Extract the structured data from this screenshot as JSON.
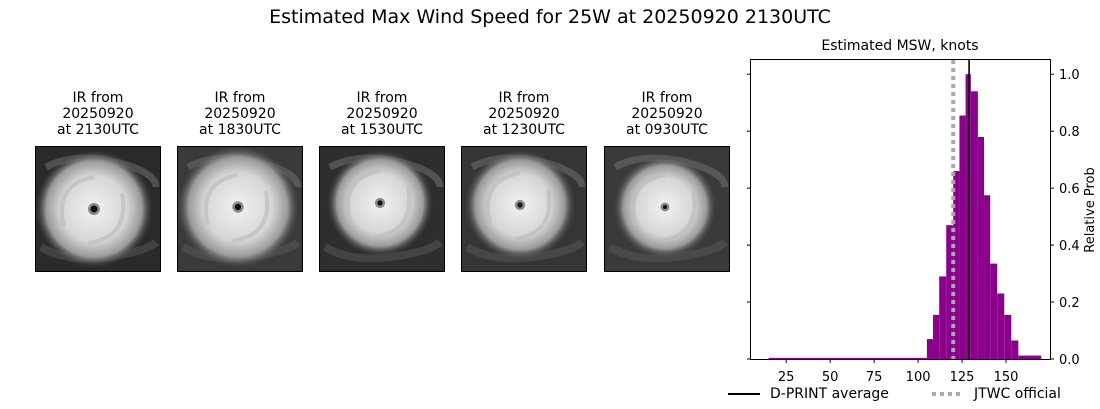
{
  "title": "Estimated Max Wind Speed for 25W at 20250920 2130UTC",
  "ir_panels": [
    {
      "line1": "IR from",
      "line2": "20250920",
      "line3": "at 2130UTC",
      "icon": "ir-satellite-image"
    },
    {
      "line1": "IR from",
      "line2": "20250920",
      "line3": "at 1830UTC",
      "icon": "ir-satellite-image"
    },
    {
      "line1": "IR from",
      "line2": "20250920",
      "line3": "at 1530UTC",
      "icon": "ir-satellite-image"
    },
    {
      "line1": "IR from",
      "line2": "20250920",
      "line3": "at 1230UTC",
      "icon": "ir-satellite-image"
    },
    {
      "line1": "IR from",
      "line2": "20250920",
      "line3": "at 0930UTC",
      "icon": "ir-satellite-image"
    }
  ],
  "chart_data": {
    "type": "bar",
    "title": "Estimated MSW, knots",
    "xlabel": "",
    "ylabel": "Relative Prob",
    "xlim": [
      5,
      175
    ],
    "ylim": [
      0,
      1.05
    ],
    "xticks": [
      25,
      50,
      75,
      100,
      125,
      150
    ],
    "yticks": [
      0.0,
      0.2,
      0.4,
      0.6,
      0.8,
      1.0
    ],
    "bar_color": "#8b008b",
    "bins": [
      {
        "x0": 15,
        "x1": 105,
        "value": 0.004
      },
      {
        "x0": 105,
        "x1": 108.5,
        "value": 0.07
      },
      {
        "x0": 108.5,
        "x1": 112,
        "value": 0.155
      },
      {
        "x0": 112,
        "x1": 116,
        "value": 0.29
      },
      {
        "x0": 116,
        "x1": 120,
        "value": 0.47
      },
      {
        "x0": 120,
        "x1": 123.5,
        "value": 0.66
      },
      {
        "x0": 123.5,
        "x1": 127,
        "value": 0.855
      },
      {
        "x0": 127,
        "x1": 130,
        "value": 1.0
      },
      {
        "x0": 130,
        "x1": 134,
        "value": 0.94
      },
      {
        "x0": 134,
        "x1": 137.5,
        "value": 0.78
      },
      {
        "x0": 137.5,
        "x1": 141,
        "value": 0.575
      },
      {
        "x0": 141,
        "x1": 145,
        "value": 0.335
      },
      {
        "x0": 145,
        "x1": 149,
        "value": 0.23
      },
      {
        "x0": 149,
        "x1": 153,
        "value": 0.155
      },
      {
        "x0": 153,
        "x1": 157,
        "value": 0.065
      },
      {
        "x0": 157,
        "x1": 170,
        "value": 0.012
      }
    ],
    "reference_lines": [
      {
        "name": "D-PRINT average",
        "x": 129,
        "style": "solid",
        "color": "#000000"
      },
      {
        "name": "JTWC official",
        "x": 120,
        "style": "dotted",
        "color": "#a9a9a9"
      }
    ],
    "grid": false,
    "legend_position": "bottom-right"
  },
  "legend": [
    {
      "label": "D-PRINT average",
      "style": "solid",
      "color": "#000000"
    },
    {
      "label": "JTWC official",
      "style": "dotted",
      "color": "#a9a9a9"
    }
  ]
}
